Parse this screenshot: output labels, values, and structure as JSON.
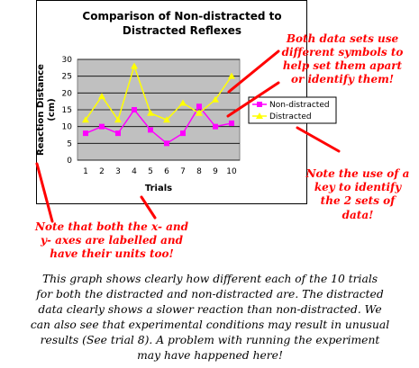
{
  "chart_data": {
    "type": "line",
    "title": [
      "Comparison of Non-distracted to",
      "Distracted Reflexes"
    ],
    "xlabel": "Trials",
    "ylabel": [
      "Reaction Distance",
      "(cm)"
    ],
    "categories": [
      "1",
      "2",
      "3",
      "4",
      "5",
      "6",
      "7",
      "8",
      "9",
      "10"
    ],
    "ylim": [
      0,
      30
    ],
    "yticks": [
      "0",
      "5",
      "10",
      "15",
      "20",
      "25",
      "30"
    ],
    "grid": true,
    "legend_position": "right",
    "series": [
      {
        "name": "Non-distracted",
        "marker": "square",
        "color": "#ff00ff",
        "values": [
          8,
          10,
          8,
          15,
          9,
          5,
          8,
          16,
          10,
          11
        ]
      },
      {
        "name": "Distracted",
        "marker": "triangle",
        "color": "#ffff00",
        "values": [
          12,
          19,
          12,
          28,
          14,
          12,
          17,
          14,
          18,
          25
        ]
      }
    ],
    "plot_bg": "#c0c0c0"
  },
  "annotations": {
    "symbols_note": [
      "Both data sets use",
      "different symbols to",
      "help set them apart",
      "or identify them!"
    ],
    "key_note": [
      "Note the use of a",
      "key to identify",
      "the 2 sets of",
      "data!"
    ],
    "axes_note": [
      "Note that both the x- and",
      "y- axes are labelled and",
      "have their units too!"
    ],
    "color": "#ff0000"
  },
  "caption": [
    "This graph shows clearly how different each of the 10 trials",
    "for both the distracted and non-distracted are. The distracted",
    "data clearly shows a slower reaction than non-distracted. We",
    "can also see that experimental conditions may result in unusual",
    "results (See trial 8). A problem with running the experiment",
    "may have happened here!"
  ]
}
